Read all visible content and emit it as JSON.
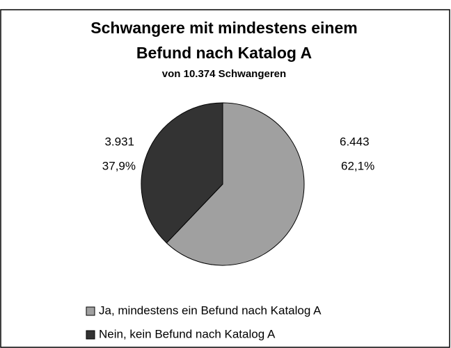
{
  "chart_data": {
    "type": "pie",
    "title": "Schwangere mit mindestens einem",
    "title_line2": "Befund nach Katalog A",
    "subtitle": "von 10.374 Schwangeren",
    "series": [
      {
        "name": "Ja, mindestens ein Befund nach Katalog A",
        "color": "#a0a0a0"
      },
      {
        "name": "Nein, kein Befund nach Katalog A",
        "color": "#333333"
      }
    ],
    "values": [
      6443,
      3931
    ],
    "value_labels": [
      "6.443",
      "3.931"
    ],
    "percent_labels": [
      "62,1%",
      "37,9%"
    ]
  }
}
